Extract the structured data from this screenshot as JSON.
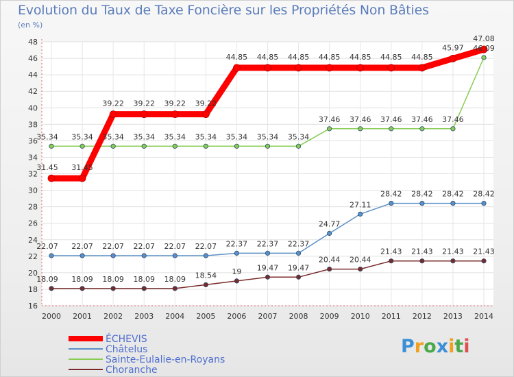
{
  "chart_data": {
    "type": "line",
    "title": "Evolution du Taux de Taxe Foncière sur les Propriétés Non Bâties",
    "ylabel": "(en %)",
    "xlabel": "",
    "ylim": [
      16,
      48
    ],
    "yticks": [
      16,
      18,
      20,
      22,
      24,
      26,
      28,
      30,
      32,
      34,
      36,
      38,
      40,
      42,
      44,
      46,
      48
    ],
    "grid": true,
    "categories": [
      "2000",
      "2001",
      "2002",
      "2003",
      "2004",
      "2005",
      "2006",
      "2007",
      "2008",
      "2009",
      "2010",
      "2011",
      "2012",
      "2013",
      "2014"
    ],
    "series": [
      {
        "name": "ÉCHEVIS",
        "color": "#ff0000",
        "values": [
          31.45,
          31.45,
          39.22,
          39.22,
          39.22,
          39.22,
          44.85,
          44.85,
          44.85,
          44.85,
          44.85,
          44.85,
          44.85,
          45.97,
          47.08
        ],
        "labels": [
          "31.45",
          "31.45",
          "39.22",
          "39.22",
          "39.22",
          "39.22",
          "44.85",
          "44.85",
          "44.85",
          "44.85",
          "44.85",
          "44.85",
          "44.85",
          "45.97",
          "47.08"
        ]
      },
      {
        "name": "Châtelus",
        "color": "#5b8fc7",
        "values": [
          22.07,
          22.07,
          22.07,
          22.07,
          22.07,
          22.07,
          22.37,
          22.37,
          22.37,
          24.77,
          27.11,
          28.42,
          28.42,
          28.42,
          28.42
        ],
        "labels": [
          "22.07",
          "22.07",
          "22.07",
          "22.07",
          "22.07",
          "22.07",
          "22.37",
          "22.37",
          "22.37",
          "24.77",
          "27.11",
          "28.42",
          "28.42",
          "28.42",
          "28.42"
        ]
      },
      {
        "name": "Sainte-Eulalie-en-Royans",
        "color": "#88cc55",
        "values": [
          35.34,
          35.34,
          35.34,
          35.34,
          35.34,
          35.34,
          35.34,
          35.34,
          35.34,
          37.46,
          37.46,
          37.46,
          37.46,
          37.46,
          46.09
        ],
        "labels": [
          "35.34",
          "35.34",
          "35.34",
          "35.34",
          "35.34",
          "35.34",
          "35.34",
          "35.34",
          "35.34",
          "37.46",
          "37.46",
          "37.46",
          "37.46",
          "37.46",
          "46.09"
        ]
      },
      {
        "name": "Choranche",
        "color": "#7a2a2a",
        "values": [
          18.09,
          18.09,
          18.09,
          18.09,
          18.09,
          18.54,
          19,
          19.47,
          19.47,
          20.44,
          20.44,
          21.43,
          21.43,
          21.43,
          21.43
        ],
        "labels": [
          "18.09",
          "18.09",
          "18.09",
          "18.09",
          "18.09",
          "18.54",
          "19",
          "19.47",
          "19.47",
          "20.44",
          "20.44",
          "21.43",
          "21.43",
          "21.43",
          "21.43"
        ]
      }
    ]
  },
  "logo": {
    "letters": [
      "P",
      "r",
      "o",
      "x",
      "i",
      "t",
      "i"
    ],
    "colors": [
      "#3b8fd6",
      "#f0a020",
      "#4aa84a",
      "#3b8fd6",
      "#f0a020",
      "#4aa84a",
      "#e05050"
    ]
  }
}
